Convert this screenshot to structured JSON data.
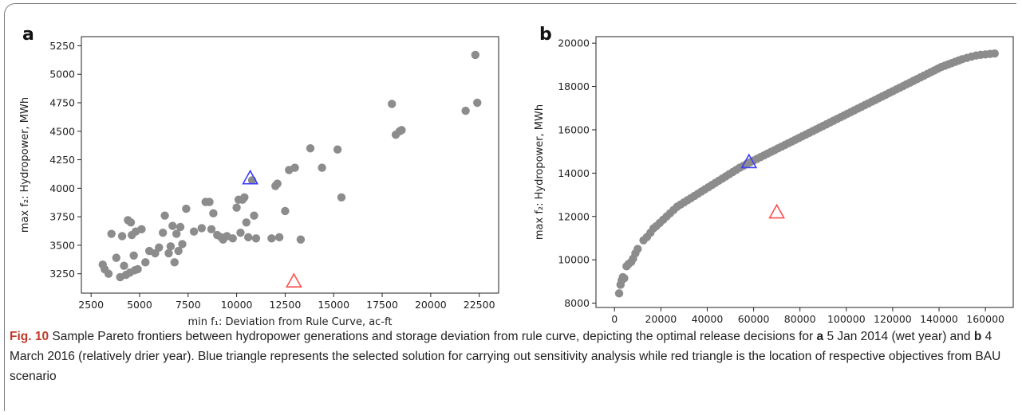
{
  "chart_data": [
    {
      "panel": "a",
      "type": "scatter",
      "xlabel": "min f₁: Deviation from Rule Curve, ac-ft",
      "ylabel": "max f₂: Hydropower, MWh",
      "xlim": [
        2000,
        23500
      ],
      "ylim": [
        3080,
        5330
      ],
      "xticks": [
        "2500",
        "5000",
        "7500",
        "10000",
        "12500",
        "15000",
        "17500",
        "20000",
        "22500"
      ],
      "yticks": [
        "3250",
        "3500",
        "3750",
        "4000",
        "4250",
        "4500",
        "4750",
        "5000",
        "5250"
      ],
      "grid": false,
      "colors": {
        "points": "#8c8c8c",
        "selected": "#3b3bff",
        "bau": "#ff4d4d"
      },
      "points": [
        [
          3100,
          3330
        ],
        [
          3200,
          3290
        ],
        [
          3400,
          3250
        ],
        [
          3550,
          3600
        ],
        [
          3800,
          3390
        ],
        [
          4000,
          3220
        ],
        [
          4100,
          3580
        ],
        [
          4200,
          3320
        ],
        [
          4300,
          3240
        ],
        [
          4400,
          3720
        ],
        [
          4500,
          3260
        ],
        [
          4550,
          3700
        ],
        [
          4600,
          3590
        ],
        [
          4700,
          3410
        ],
        [
          4750,
          3280
        ],
        [
          4800,
          3620
        ],
        [
          4900,
          3290
        ],
        [
          5100,
          3640
        ],
        [
          5300,
          3350
        ],
        [
          5500,
          3450
        ],
        [
          5800,
          3430
        ],
        [
          6000,
          3480
        ],
        [
          6200,
          3610
        ],
        [
          6300,
          3760
        ],
        [
          6500,
          3430
        ],
        [
          6600,
          3490
        ],
        [
          6700,
          3670
        ],
        [
          6800,
          3350
        ],
        [
          6900,
          3600
        ],
        [
          7000,
          3450
        ],
        [
          7100,
          3660
        ],
        [
          7200,
          3510
        ],
        [
          7400,
          3820
        ],
        [
          7800,
          3620
        ],
        [
          8200,
          3650
        ],
        [
          8400,
          3880
        ],
        [
          8600,
          3880
        ],
        [
          8700,
          3640
        ],
        [
          8800,
          3780
        ],
        [
          9000,
          3590
        ],
        [
          9200,
          3570
        ],
        [
          9300,
          3550
        ],
        [
          9500,
          3580
        ],
        [
          9800,
          3560
        ],
        [
          10000,
          3830
        ],
        [
          10100,
          3900
        ],
        [
          10200,
          3610
        ],
        [
          10300,
          3900
        ],
        [
          10400,
          3920
        ],
        [
          10500,
          3700
        ],
        [
          10600,
          3570
        ],
        [
          10800,
          4070
        ],
        [
          10900,
          3760
        ],
        [
          11000,
          3560
        ],
        [
          11800,
          3560
        ],
        [
          12000,
          4020
        ],
        [
          12100,
          4040
        ],
        [
          12200,
          3570
        ],
        [
          12500,
          3800
        ],
        [
          12700,
          4160
        ],
        [
          13000,
          4180
        ],
        [
          13300,
          3550
        ],
        [
          13800,
          4350
        ],
        [
          14400,
          4180
        ],
        [
          15200,
          4340
        ],
        [
          15400,
          3920
        ],
        [
          18000,
          4740
        ],
        [
          18200,
          4470
        ],
        [
          18400,
          4500
        ],
        [
          18500,
          4510
        ],
        [
          21800,
          4680
        ],
        [
          22300,
          5170
        ],
        [
          22400,
          4750
        ]
      ],
      "selected": [
        10700,
        4090
      ],
      "bau": [
        12950,
        3185
      ]
    },
    {
      "panel": "b",
      "type": "scatter",
      "xlabel": "min f₁: Deviation from Rule Curve, ac-ft",
      "ylabel": "max f₂: Hydropower, MWh",
      "xlim": [
        -8000,
        172000
      ],
      "ylim": [
        7800,
        20300
      ],
      "xticks": [
        "0",
        "20000",
        "40000",
        "60000",
        "80000",
        "100000",
        "120000",
        "140000",
        "160000"
      ],
      "yticks": [
        "8000",
        "10000",
        "12000",
        "14000",
        "16000",
        "18000",
        "20000"
      ],
      "grid": false,
      "colors": {
        "points": "#8c8c8c",
        "selected": "#3b3bff",
        "bau": "#ff4d4d"
      },
      "points": [
        [
          2000,
          8450
        ],
        [
          2600,
          8850
        ],
        [
          3100,
          9050
        ],
        [
          3600,
          9200
        ],
        [
          4200,
          9150
        ],
        [
          5200,
          9700
        ],
        [
          6000,
          9800
        ],
        [
          7200,
          9900
        ],
        [
          8000,
          10050
        ],
        [
          9000,
          10300
        ],
        [
          10000,
          10500
        ],
        [
          12500,
          10900
        ],
        [
          14000,
          11050
        ],
        [
          15500,
          11250
        ],
        [
          16800,
          11450
        ],
        [
          18000,
          11550
        ],
        [
          19500,
          11700
        ],
        [
          21000,
          11850
        ],
        [
          22500,
          12000
        ],
        [
          24000,
          12150
        ],
        [
          25500,
          12300
        ],
        [
          27000,
          12450
        ],
        [
          28500,
          12550
        ],
        [
          30000,
          12650
        ],
        [
          31500,
          12750
        ],
        [
          33000,
          12850
        ],
        [
          34500,
          12950
        ],
        [
          36000,
          13050
        ],
        [
          37500,
          13150
        ],
        [
          39000,
          13250
        ],
        [
          40500,
          13350
        ],
        [
          42000,
          13450
        ],
        [
          43500,
          13550
        ],
        [
          45000,
          13650
        ],
        [
          46500,
          13750
        ],
        [
          48000,
          13850
        ],
        [
          49500,
          13950
        ],
        [
          51000,
          14050
        ],
        [
          52500,
          14150
        ],
        [
          54000,
          14250
        ],
        [
          55500,
          14330
        ],
        [
          57000,
          14420
        ],
        [
          58500,
          14500
        ],
        [
          60000,
          14580
        ],
        [
          61500,
          14660
        ],
        [
          63000,
          14740
        ],
        [
          64500,
          14820
        ],
        [
          66000,
          14900
        ],
        [
          67500,
          14980
        ],
        [
          69000,
          15060
        ],
        [
          70500,
          15140
        ],
        [
          72000,
          15220
        ],
        [
          73500,
          15300
        ],
        [
          75000,
          15380
        ],
        [
          76500,
          15460
        ],
        [
          78000,
          15540
        ],
        [
          79500,
          15620
        ],
        [
          81000,
          15700
        ],
        [
          82500,
          15780
        ],
        [
          84000,
          15860
        ],
        [
          85500,
          15940
        ],
        [
          87000,
          16020
        ],
        [
          88500,
          16100
        ],
        [
          90000,
          16180
        ],
        [
          91500,
          16260
        ],
        [
          93000,
          16340
        ],
        [
          94500,
          16420
        ],
        [
          96000,
          16500
        ],
        [
          97500,
          16580
        ],
        [
          99000,
          16660
        ],
        [
          100500,
          16740
        ],
        [
          102000,
          16820
        ],
        [
          103500,
          16900
        ],
        [
          105000,
          16980
        ],
        [
          106500,
          17060
        ],
        [
          108000,
          17140
        ],
        [
          109500,
          17220
        ],
        [
          111000,
          17300
        ],
        [
          112500,
          17380
        ],
        [
          114000,
          17460
        ],
        [
          115500,
          17540
        ],
        [
          117000,
          17620
        ],
        [
          118500,
          17700
        ],
        [
          120000,
          17780
        ],
        [
          121500,
          17860
        ],
        [
          123000,
          17940
        ],
        [
          124500,
          18020
        ],
        [
          126000,
          18100
        ],
        [
          127500,
          18180
        ],
        [
          129000,
          18260
        ],
        [
          130500,
          18340
        ],
        [
          132000,
          18420
        ],
        [
          133500,
          18500
        ],
        [
          135000,
          18580
        ],
        [
          136500,
          18660
        ],
        [
          138000,
          18740
        ],
        [
          139500,
          18820
        ],
        [
          141000,
          18900
        ],
        [
          142500,
          18960
        ],
        [
          144000,
          19020
        ],
        [
          145500,
          19080
        ],
        [
          147000,
          19140
        ],
        [
          148500,
          19200
        ],
        [
          150000,
          19260
        ],
        [
          152000,
          19320
        ],
        [
          154000,
          19380
        ],
        [
          156000,
          19430
        ],
        [
          158000,
          19460
        ],
        [
          160000,
          19480
        ],
        [
          162000,
          19500
        ],
        [
          164000,
          19520
        ]
      ],
      "selected": [
        58000,
        14520
      ],
      "bau": [
        70000,
        12200
      ]
    }
  ],
  "caption": {
    "fig_label": "Fig. 10",
    "text_1": " Sample Pareto frontiers between hydropower generations and storage deviation from rule curve, depicting the optimal release decisions for ",
    "bold_a": "a",
    "text_2": " 5 Jan 2014 (wet year) and ",
    "bold_b": "b",
    "text_3": " 4 March 2016 (relatively drier year). Blue triangle represents the selected solution for carrying out sensitivity analysis while red triangle is the location of respective objectives from BAU scenario"
  }
}
